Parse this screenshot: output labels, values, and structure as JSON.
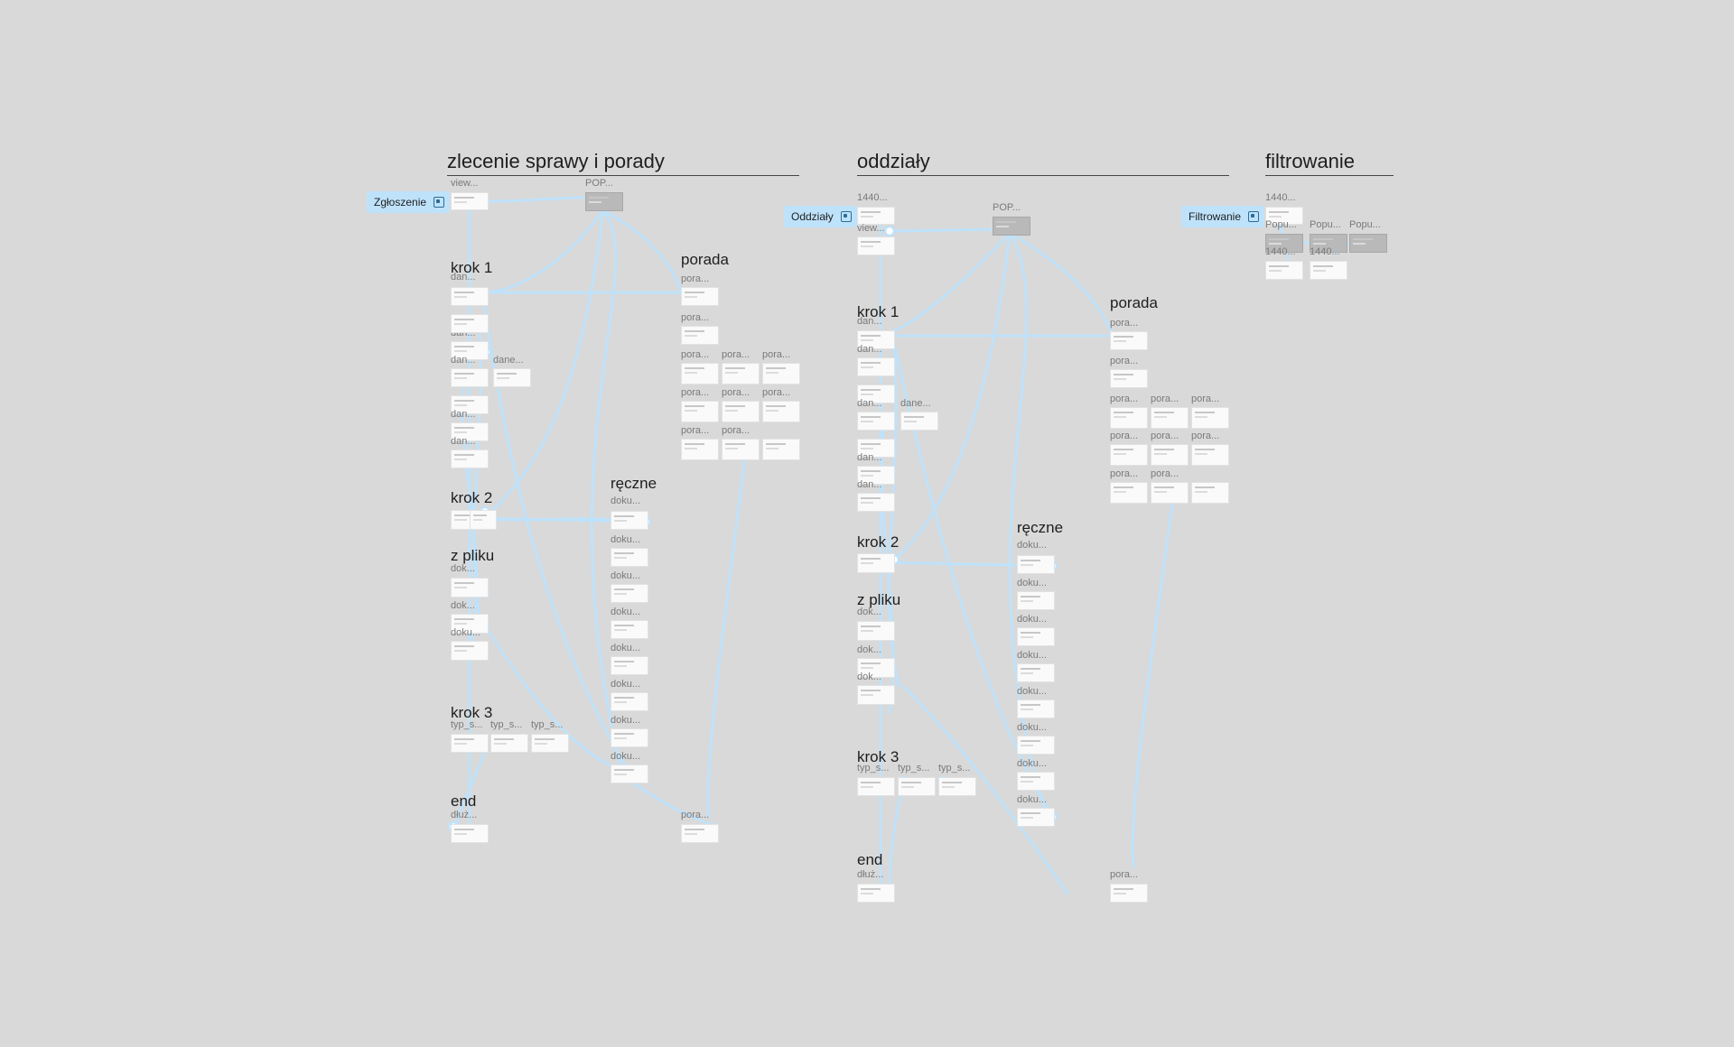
{
  "canvas": {
    "background": "#d9d9d9",
    "wire_color": "#bfe2fb"
  },
  "sections": {
    "zlecenie": {
      "title": "zlecenie sprawy i porady",
      "flow_start": "Zgłoszenie",
      "frames": {
        "view": "view...",
        "pop": "POP...",
        "krok1": "krok 1",
        "dane1": "dan...",
        "dane2": "dan...",
        "dane3": "dan...",
        "dane4": "dane...",
        "dane5": "dan...",
        "dane6": "dan...",
        "porada": "porada",
        "por1": "pora...",
        "por2": "pora...",
        "por3": "pora...",
        "por4": "pora...",
        "por5": "pora...",
        "por6": "pora...",
        "por7": "pora...",
        "por8": "pora...",
        "por9": "pora...",
        "por10": "pora...",
        "por_end": "pora...",
        "krok2": "krok 2",
        "reczne": "ręczne",
        "dok1": "doku...",
        "dok2": "doku...",
        "dok3": "doku...",
        "dok4": "doku...",
        "dok5": "doku...",
        "dok6": "doku...",
        "dok7": "doku...",
        "dok8": "doku...",
        "zpliku": "z pliku",
        "zp1": "dok...",
        "zp2": "dok...",
        "zp3": "doku...",
        "krok3": "krok 3",
        "typ1": "typ_s...",
        "typ2": "typ_s...",
        "typ3": "typ_s...",
        "end": "end",
        "dluz": "dłuż..."
      }
    },
    "oddzialy": {
      "title": "oddziały",
      "flow_start": "Oddziały",
      "frames": {
        "f1440": "1440...",
        "view": "view...",
        "pop": "POP...",
        "krok1": "krok 1",
        "dane1": "dan...",
        "dane2": "dan...",
        "dane3": "dan...",
        "dane4": "dane...",
        "dane5": "dan...",
        "dane6": "dan...",
        "porada": "porada",
        "por1": "pora...",
        "por2": "pora...",
        "por3": "pora...",
        "por4": "pora...",
        "por5": "pora...",
        "por6": "pora...",
        "por7": "pora...",
        "por8": "pora...",
        "por9": "pora...",
        "por10": "pora...",
        "por_end": "pora...",
        "krok2": "krok 2",
        "reczne": "ręczne",
        "dok1": "doku...",
        "dok2": "doku...",
        "dok3": "doku...",
        "dok4": "doku...",
        "dok5": "doku...",
        "dok6": "doku...",
        "dok7": "doku...",
        "dok8": "doku...",
        "zpliku": "z pliku",
        "zp1": "dok...",
        "zp2": "dok...",
        "zp3": "dok...",
        "krok3": "krok 3",
        "typ1": "typ_s...",
        "typ2": "typ_s...",
        "typ3": "typ_s...",
        "end": "end",
        "dluz": "dłuż..."
      }
    },
    "filtrowanie": {
      "title": "filtrowanie",
      "flow_start": "Filtrowanie",
      "frames": {
        "f1440a": "1440...",
        "popu1": "Popu...",
        "popu2": "Popu...",
        "popu3": "Popu...",
        "f1440b": "1440...",
        "f1440c": "1440..."
      }
    }
  }
}
